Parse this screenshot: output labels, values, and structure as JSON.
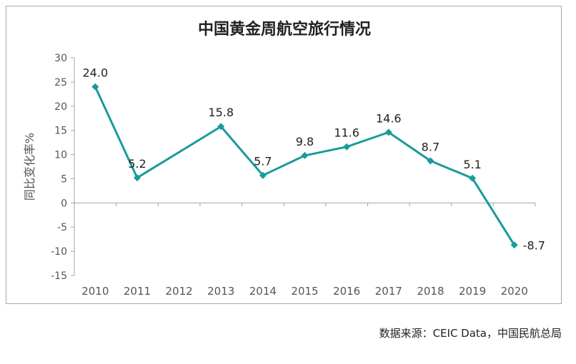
{
  "chart_data": {
    "type": "line",
    "title": "中国黄金周航空旅行情况",
    "ylabel": "同比变化率%",
    "xlabel": "",
    "categories": [
      "2010",
      "2011",
      "2012",
      "2013",
      "2014",
      "2015",
      "2016",
      "2017",
      "2018",
      "2019",
      "2020"
    ],
    "series": [
      {
        "values": [
          24.0,
          5.2,
          null,
          15.8,
          5.7,
          9.8,
          11.6,
          14.6,
          8.7,
          5.1,
          -8.7
        ],
        "labels": [
          "24.0",
          "5.2",
          "",
          "15.8",
          "5.7",
          "9.8",
          "11.6",
          "14.6",
          "8.7",
          "5.1",
          "-8.7"
        ]
      }
    ],
    "yticks": [
      "30",
      "25",
      "20",
      "15",
      "10",
      "5",
      "0",
      "-5",
      "-10",
      "-15"
    ],
    "ylim": [
      -15,
      30
    ],
    "grid": false,
    "legend": "none",
    "colors": {
      "line": "#1a9b9b",
      "axis": "#a6a6a6",
      "text": "#222222"
    }
  },
  "source": "数据来源：CEIC Data，中国民航总局"
}
